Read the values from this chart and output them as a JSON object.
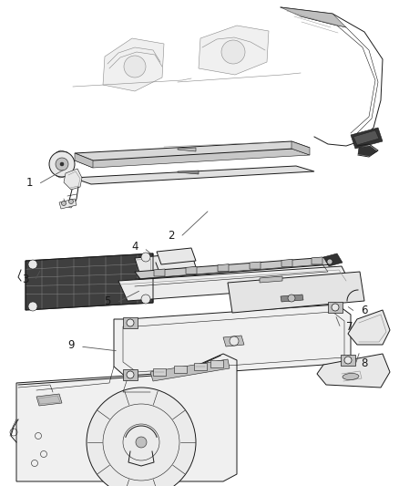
{
  "background_color": "#ffffff",
  "line_color": "#1a1a1a",
  "label_color": "#1a1a1a",
  "fig_width": 4.38,
  "fig_height": 5.33,
  "dpi": 100,
  "label_fontsize": 8.5,
  "lw_main": 0.7,
  "lw_thin": 0.4,
  "lw_thick": 1.2,
  "gray_light": "#e8e8e8",
  "gray_mid": "#c0c0c0",
  "gray_dark": "#888888",
  "gray_black": "#333333"
}
